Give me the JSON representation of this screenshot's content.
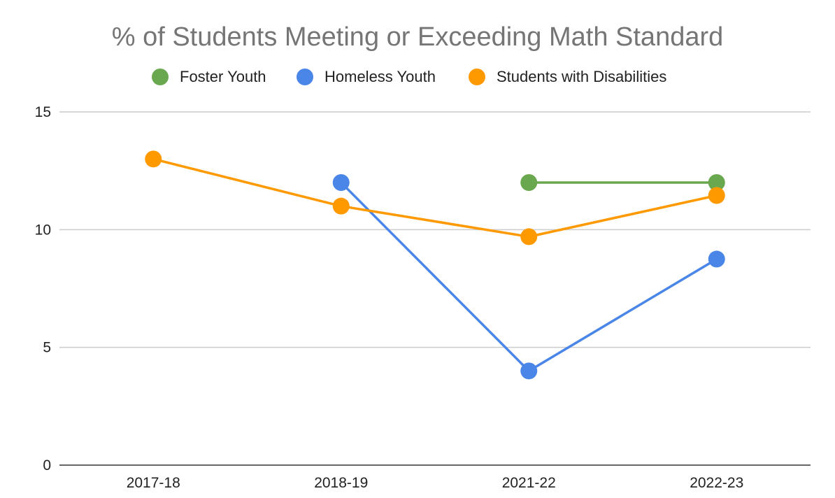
{
  "chart_data": {
    "type": "line",
    "title": "% of Students Meeting or Exceeding Math Standard",
    "categories": [
      "2017-18",
      "2018-19",
      "2021-22",
      "2022-23"
    ],
    "ylim": [
      0,
      15
    ],
    "yticks": [
      0,
      5,
      10,
      15
    ],
    "grid": true,
    "legend_position": "top",
    "series": [
      {
        "name": "Foster Youth",
        "color": "#6aa84f",
        "values": [
          null,
          null,
          12,
          12
        ]
      },
      {
        "name": "Homeless Youth",
        "color": "#4a86e8",
        "values": [
          null,
          12,
          4,
          8.75
        ]
      },
      {
        "name": "Students with Disabilities",
        "color": "#ff9900",
        "values": [
          13,
          11,
          9.7,
          11.45
        ]
      }
    ]
  }
}
